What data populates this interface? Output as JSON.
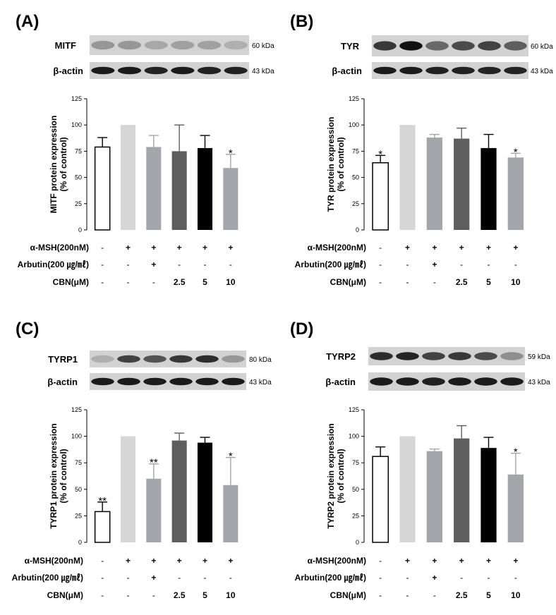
{
  "panels": [
    {
      "id": "A",
      "letter": "(A)",
      "blots": [
        {
          "name": "MITF",
          "kda": "60 kDa",
          "intensities": [
            0.3,
            0.3,
            0.22,
            0.25,
            0.25,
            0.18
          ]
        },
        {
          "name": "β-actin",
          "kda": "43 kDa",
          "intensities": [
            0.95,
            0.95,
            0.9,
            0.95,
            0.92,
            0.92
          ]
        }
      ],
      "chart_data": {
        "type": "bar",
        "ylabel": "MITF protein expression\n(% of control)",
        "ylim": [
          0,
          125
        ],
        "yticks": [
          0,
          25,
          50,
          75,
          100,
          125
        ],
        "values": [
          79,
          100,
          79,
          75,
          78,
          59
        ],
        "errors": [
          9,
          0,
          11,
          25,
          12,
          13
        ],
        "significance": [
          "",
          "",
          "",
          "",
          "",
          "*"
        ]
      },
      "conditions": [
        {
          "label": "α-MSH(200nM)",
          "values": [
            "-",
            "+",
            "+",
            "+",
            "+",
            "+"
          ]
        },
        {
          "label": "Arbutin(200 ㎍/㎖)",
          "values": [
            "-",
            "-",
            "+",
            "-",
            "-",
            "-"
          ]
        },
        {
          "label": "CBN(μM)",
          "values": [
            "-",
            "-",
            "-",
            "2.5",
            "5",
            "10"
          ]
        }
      ]
    },
    {
      "id": "B",
      "letter": "(B)",
      "blots": [
        {
          "name": "TYR",
          "kda": "60 kDa",
          "intensities": [
            0.8,
            1.0,
            0.55,
            0.7,
            0.75,
            0.6
          ]
        },
        {
          "name": "β-actin",
          "kda": "43 kDa",
          "intensities": [
            0.95,
            0.95,
            0.92,
            0.92,
            0.9,
            0.9
          ]
        }
      ],
      "chart_data": {
        "type": "bar",
        "ylabel": "TYR protein expression\n(% of control)",
        "ylim": [
          0,
          125
        ],
        "yticks": [
          0,
          25,
          50,
          75,
          100,
          125
        ],
        "values": [
          64,
          100,
          88,
          87,
          78,
          69
        ],
        "errors": [
          7,
          0,
          3,
          10,
          13,
          4
        ],
        "significance": [
          "*",
          "",
          "",
          "",
          "",
          "*"
        ]
      },
      "conditions": [
        {
          "label": "α-MSH(200nM)",
          "values": [
            "-",
            "+",
            "+",
            "+",
            "+",
            "+"
          ]
        },
        {
          "label": "Arbutin(200 ㎍/㎖)",
          "values": [
            "-",
            "-",
            "+",
            "-",
            "-",
            "-"
          ]
        },
        {
          "label": "CBN(μM)",
          "values": [
            "-",
            "-",
            "-",
            "2.5",
            "5",
            "10"
          ]
        }
      ]
    },
    {
      "id": "C",
      "letter": "(C)",
      "blots": [
        {
          "name": "TYRP1",
          "kda": "80 kDa",
          "intensities": [
            0.18,
            0.75,
            0.65,
            0.8,
            0.85,
            0.3
          ]
        },
        {
          "name": "β-actin",
          "kda": "43 kDa",
          "intensities": [
            0.95,
            0.95,
            0.95,
            0.95,
            0.95,
            0.95
          ]
        }
      ],
      "chart_data": {
        "type": "bar",
        "ylabel": "TYRP1 protein expression\n(% of control)",
        "ylim": [
          0,
          125
        ],
        "yticks": [
          0,
          25,
          50,
          75,
          100,
          125
        ],
        "values": [
          29,
          100,
          60,
          96,
          94,
          54
        ],
        "errors": [
          9,
          0,
          14,
          7,
          5,
          26
        ],
        "significance": [
          "**",
          "",
          "**",
          "",
          "",
          "*"
        ]
      },
      "conditions": [
        {
          "label": "α-MSH(200nM)",
          "values": [
            "-",
            "+",
            "+",
            "+",
            "+",
            "+"
          ]
        },
        {
          "label": "Arbutin(200 ㎍/㎖)",
          "values": [
            "-",
            "-",
            "+",
            "-",
            "-",
            "-"
          ]
        },
        {
          "label": "CBN(μM)",
          "values": [
            "-",
            "-",
            "-",
            "2.5",
            "5",
            "10"
          ]
        }
      ]
    },
    {
      "id": "D",
      "letter": "(D)",
      "blots": [
        {
          "name": "TYRP2",
          "kda": "59 kDa",
          "intensities": [
            0.85,
            0.9,
            0.75,
            0.8,
            0.7,
            0.35
          ]
        },
        {
          "name": "β-actin",
          "kda": "43 kDa",
          "intensities": [
            0.95,
            0.95,
            0.92,
            0.95,
            0.95,
            0.95
          ]
        }
      ],
      "chart_data": {
        "type": "bar",
        "ylabel": "TYRP2 protein expression\n(% of control)",
        "ylim": [
          0,
          125
        ],
        "yticks": [
          0,
          25,
          50,
          75,
          100,
          125
        ],
        "values": [
          81,
          100,
          86,
          98,
          89,
          64
        ],
        "errors": [
          9,
          0,
          2,
          12,
          10,
          20
        ],
        "significance": [
          "",
          "",
          "",
          "",
          "",
          "*"
        ]
      },
      "conditions": [
        {
          "label": "α-MSH(200nM)",
          "values": [
            "-",
            "+",
            "+",
            "+",
            "+",
            "+"
          ]
        },
        {
          "label": "Arbutin(200 ㎍/㎖)",
          "values": [
            "-",
            "-",
            "+",
            "-",
            "-",
            "-"
          ]
        },
        {
          "label": "CBN(μM)",
          "values": [
            "-",
            "-",
            "-",
            "2.5",
            "5",
            "10"
          ]
        }
      ]
    }
  ],
  "colors": {
    "bar_fills": [
      "#ffffff",
      "#d6d6d6",
      "#a4a4ab",
      "#5e5e5e",
      "#000000",
      "#a4a4ab"
    ],
    "axis": "#000000",
    "blot_bg": "#d2d2d2",
    "band": "#111111"
  }
}
